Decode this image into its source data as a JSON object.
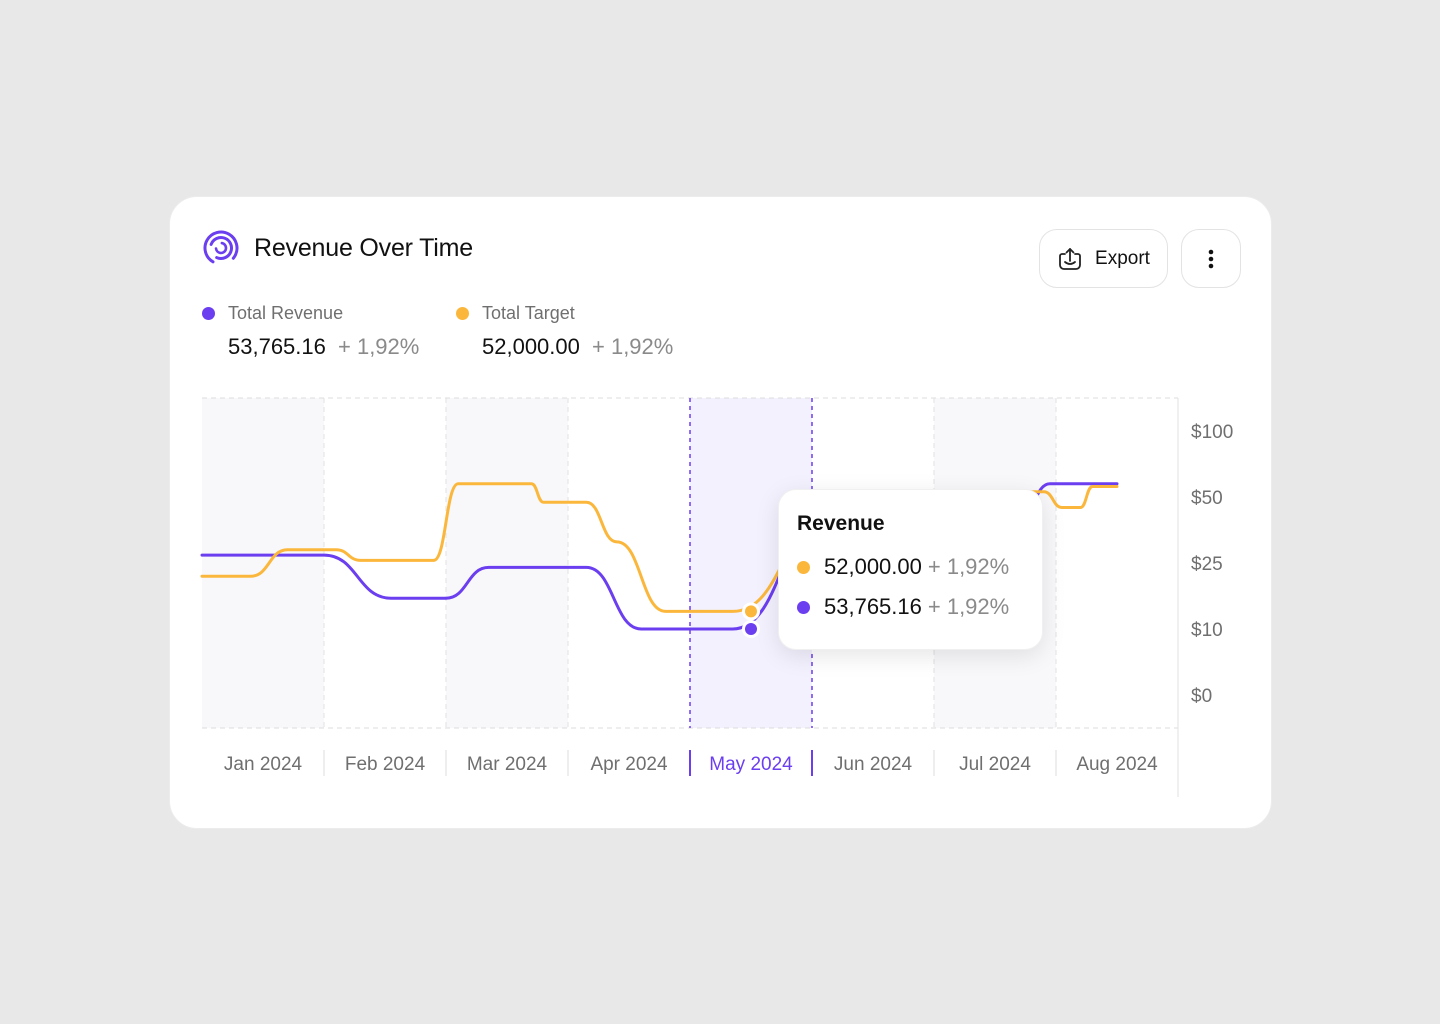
{
  "card": {
    "title": "Revenue Over Time",
    "export_label": "Export"
  },
  "legend": [
    {
      "name": "Total Revenue",
      "value": "53,765.16",
      "change": "+ 1,92%",
      "color": "#6b3ef0"
    },
    {
      "name": "Total Target",
      "value": "52,000.00",
      "change": "+ 1,92%",
      "color": "#fbb73c"
    }
  ],
  "tooltip": {
    "title": "Revenue",
    "rows": [
      {
        "value": "52,000.00",
        "change": "+ 1,92%",
        "color": "#fbb73c"
      },
      {
        "value": "53,765.16",
        "change": "+ 1,92%",
        "color": "#6b3ef0"
      }
    ]
  },
  "colors": {
    "revenue": "#6b3ef0",
    "target": "#fbb73c",
    "highlight": "#f3f1fd",
    "band": "#f8f8fa",
    "axis_text": "#6f6f6f",
    "active_text": "#6b3ef0"
  },
  "chart_data": {
    "type": "line",
    "categories": [
      "Jan 2024",
      "Feb 2024",
      "Mar 2024",
      "Apr 2024",
      "May 2024",
      "Jun 2024",
      "Jul 2024",
      "Aug 2024"
    ],
    "active_category": "May 2024",
    "y_ticks": [
      "$100",
      "$50",
      "$25",
      "$10",
      "$0"
    ],
    "grid": true,
    "series": [
      {
        "key": "revenue",
        "x": [
          0,
          0.55,
          1.0,
          1.55,
          2.0,
          2.35,
          2.55,
          3.0,
          3.15,
          3.6,
          4.0,
          4.35,
          5.2,
          5.7,
          6.3,
          6.7,
          6.95,
          7.3,
          7.5
        ],
        "y": [
          28,
          28,
          28,
          17,
          17,
          24,
          24,
          24,
          24,
          10,
          10,
          10,
          50,
          52,
          42,
          42,
          60,
          60,
          60
        ]
      },
      {
        "key": "target",
        "x": [
          0,
          0.4,
          0.7,
          1.1,
          1.3,
          1.5,
          1.9,
          2.1,
          2.3,
          2.7,
          2.8,
          3.15,
          3.4,
          3.8,
          4.0,
          4.35,
          5.2,
          5.7,
          6.3,
          6.9,
          7.05,
          7.2,
          7.3,
          7.5
        ],
        "y": [
          22,
          22,
          30,
          30,
          26,
          26,
          26,
          60,
          60,
          60,
          48,
          48,
          33,
          14,
          14,
          14,
          46,
          53,
          54,
          54,
          46,
          46,
          58,
          58
        ]
      }
    ],
    "highlight_points": [
      {
        "series": "target",
        "category": "May 2024",
        "value": 14
      },
      {
        "series": "revenue",
        "category": "May 2024",
        "value": 10
      }
    ]
  }
}
